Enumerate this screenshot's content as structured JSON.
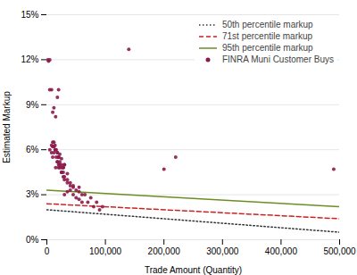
{
  "chart_data": {
    "type": "scatter",
    "xlabel": "Trade Amount (Quantity)",
    "ylabel": "Estimated Markup",
    "xlim": [
      0,
      500000
    ],
    "ylim": [
      0,
      0.15
    ],
    "xticks": [
      0,
      {
        "value": 100000,
        "label": "100,000"
      },
      {
        "value": 200000,
        "label": "200,000"
      },
      {
        "value": 300000,
        "label": "300,000"
      },
      {
        "value": 400000,
        "label": "400,000"
      },
      {
        "value": 500000,
        "label": "500,000"
      }
    ],
    "yticks": [
      {
        "value": 0,
        "label": "0%"
      },
      {
        "value": 0.03,
        "label": "3%"
      },
      {
        "value": 0.06,
        "label": "6%"
      },
      {
        "value": 0.09,
        "label": "9%"
      },
      {
        "value": 0.12,
        "label": "12%"
      },
      {
        "value": 0.15,
        "label": "15%"
      }
    ],
    "grid": "y",
    "legend": "upper right",
    "series": [
      {
        "name": "50th percentile markup",
        "type": "line",
        "color": "#333333",
        "line_style": "dotted",
        "x": [
          0,
          500000
        ],
        "values": [
          0.02,
          0.005
        ]
      },
      {
        "name": "71st percentile markup",
        "type": "line",
        "color": "#cc2222",
        "line_style": "dashed",
        "x": [
          0,
          500000
        ],
        "values": [
          0.024,
          0.014
        ]
      },
      {
        "name": "95th percentile markup",
        "type": "line",
        "color": "#6b8e23",
        "line_style": "solid",
        "x": [
          0,
          500000
        ],
        "values": [
          0.033,
          0.022
        ]
      },
      {
        "name": "FINRA Muni Customer Buys",
        "type": "scatter",
        "color": "#8B1A4A",
        "marker": "circle",
        "x": [
          2000,
          3000,
          5000,
          5000,
          8000,
          10000,
          12000,
          15000,
          18000,
          20000,
          5000,
          8000,
          10000,
          12000,
          15000,
          18000,
          20000,
          22000,
          25000,
          8000,
          10000,
          12000,
          14000,
          16000,
          18000,
          20000,
          22000,
          25000,
          28000,
          30000,
          10000,
          12000,
          14000,
          16000,
          18000,
          20000,
          22000,
          25000,
          28000,
          30000,
          35000,
          15000,
          18000,
          20000,
          22000,
          25000,
          28000,
          30000,
          35000,
          40000,
          45000,
          20000,
          25000,
          28000,
          30000,
          35000,
          40000,
          45000,
          50000,
          55000,
          60000,
          30000,
          35000,
          40000,
          45000,
          50000,
          55000,
          60000,
          70000,
          80000,
          90000,
          55000,
          65000,
          75000,
          85000,
          95000,
          140000,
          200000,
          220000,
          490000
        ],
        "values": [
          0.12,
          0.119,
          0.12,
          0.1,
          0.1,
          0.085,
          0.088,
          0.082,
          0.095,
          0.1,
          0.06,
          0.063,
          0.065,
          0.062,
          0.06,
          0.058,
          0.055,
          0.057,
          0.054,
          0.058,
          0.062,
          0.065,
          0.063,
          0.06,
          0.058,
          0.055,
          0.052,
          0.05,
          0.048,
          0.05,
          0.055,
          0.058,
          0.06,
          0.055,
          0.052,
          0.05,
          0.048,
          0.045,
          0.048,
          0.05,
          0.044,
          0.048,
          0.052,
          0.055,
          0.05,
          0.048,
          0.045,
          0.042,
          0.04,
          0.038,
          0.036,
          0.048,
          0.045,
          0.042,
          0.04,
          0.038,
          0.036,
          0.035,
          0.033,
          0.032,
          0.03,
          0.03,
          0.032,
          0.033,
          0.03,
          0.028,
          0.027,
          0.025,
          0.025,
          0.022,
          0.02,
          0.035,
          0.03,
          0.028,
          0.025,
          0.022,
          0.127,
          0.047,
          0.055,
          0.047
        ]
      }
    ]
  }
}
